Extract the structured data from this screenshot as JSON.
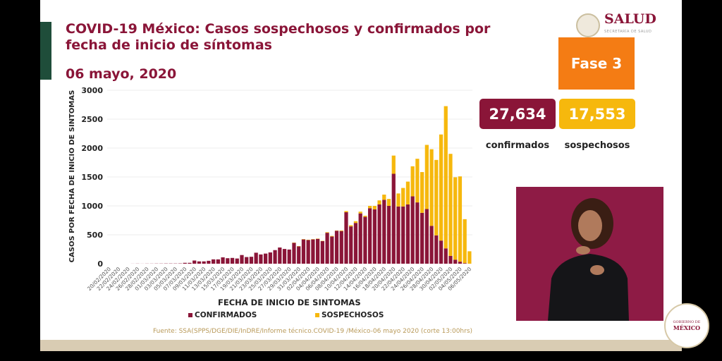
{
  "header": {
    "title": "COVID-19 México: Casos sospechosos y confirmados por fecha de inicio de síntomas",
    "date": "06 mayo, 2020",
    "brand": "SALUD",
    "brand_sub": "SECRETARÍA DE SALUD",
    "phase": "Fase 3"
  },
  "totals": {
    "confirmed_value": "27,634",
    "confirmed_label": "confirmados",
    "suspected_value": "17,553",
    "suspected_label": "sospechosos"
  },
  "footer": {
    "source": "Fuente: SSA(SPPS/DGE/DIE/InDRE/Informe técnico.COVID-19 /México-06 mayo 2020 (corte 13:00hrs)",
    "gob_line1": "GOBIERNO DE",
    "gob_line2": "MÉXICO"
  },
  "colors": {
    "confirmed": "#8a1538",
    "suspected": "#f6b80d",
    "phase": "#f47c14"
  },
  "chart_data": {
    "type": "bar",
    "stacked": true,
    "xlabel": "FECHA DE INICIO DE SINTOMAS",
    "ylabel": "CASOS POR FECHA DE INICIO DE SINTOMAS",
    "ylim": [
      0,
      3000
    ],
    "y_ticks": [
      "0",
      "500",
      "1000",
      "1500",
      "2000",
      "2500",
      "3000"
    ],
    "x_tick_labels": [
      "20/02/2020",
      "22/02/2020",
      "24/02/2020",
      "26/02/2020",
      "28/02/2020",
      "01/03/2020",
      "03/03/2020",
      "05/03/2020",
      "07/03/2020",
      "09/03/2020",
      "11/03/2020",
      "13/03/2020",
      "15/03/2020",
      "17/03/2020",
      "19/03/2020",
      "21/03/2020",
      "23/03/2020",
      "25/03/2020",
      "27/03/2020",
      "29/03/2020",
      "31/03/2020",
      "02/04/2020",
      "04/04/2020",
      "06/04/2020",
      "08/04/2020",
      "10/04/2020",
      "12/04/2020",
      "14/04/2020",
      "16/04/2020",
      "18/04/2020",
      "20/04/2020",
      "22/04/2020",
      "24/04/2020",
      "26/04/2020",
      "28/04/2020",
      "30/04/2020",
      "02/05/2020",
      "04/05/2020",
      "06/05/2020"
    ],
    "legend": [
      "CONFIRMADOS",
      "SOSPECHOSOS"
    ],
    "legend_position": "bottom",
    "grid": true,
    "series": [
      {
        "name": "CONFIRMADOS",
        "values": [
          0,
          0,
          0,
          0,
          0,
          1,
          2,
          1,
          2,
          2,
          3,
          3,
          4,
          4,
          4,
          5,
          15,
          15,
          55,
          40,
          40,
          50,
          75,
          75,
          110,
          95,
          100,
          90,
          150,
          115,
          120,
          190,
          160,
          175,
          195,
          235,
          280,
          255,
          245,
          360,
          300,
          420,
          410,
          420,
          430,
          390,
          535,
          470,
          570,
          565,
          890,
          645,
          705,
          870,
          810,
          960,
          940,
          1025,
          1105,
          1000,
          1555,
          990,
          990,
          1025,
          1165,
          1060,
          880,
          945,
          655,
          490,
          400,
          265,
          135,
          70,
          35,
          10,
          0
        ]
      },
      {
        "name": "SOSPECHOSOS",
        "values": [
          0,
          0,
          0,
          0,
          0,
          0,
          0,
          0,
          0,
          0,
          0,
          0,
          0,
          0,
          0,
          0,
          0,
          0,
          0,
          0,
          0,
          0,
          0,
          0,
          0,
          0,
          0,
          0,
          0,
          0,
          0,
          0,
          0,
          0,
          0,
          0,
          0,
          0,
          0,
          5,
          5,
          5,
          5,
          5,
          5,
          5,
          10,
          10,
          5,
          10,
          20,
          20,
          30,
          30,
          20,
          40,
          60,
          70,
          90,
          120,
          315,
          225,
          320,
          395,
          520,
          755,
          705,
          1110,
          1325,
          1305,
          1835,
          2460,
          1765,
          1425,
          1475,
          760,
          215
        ]
      }
    ]
  }
}
